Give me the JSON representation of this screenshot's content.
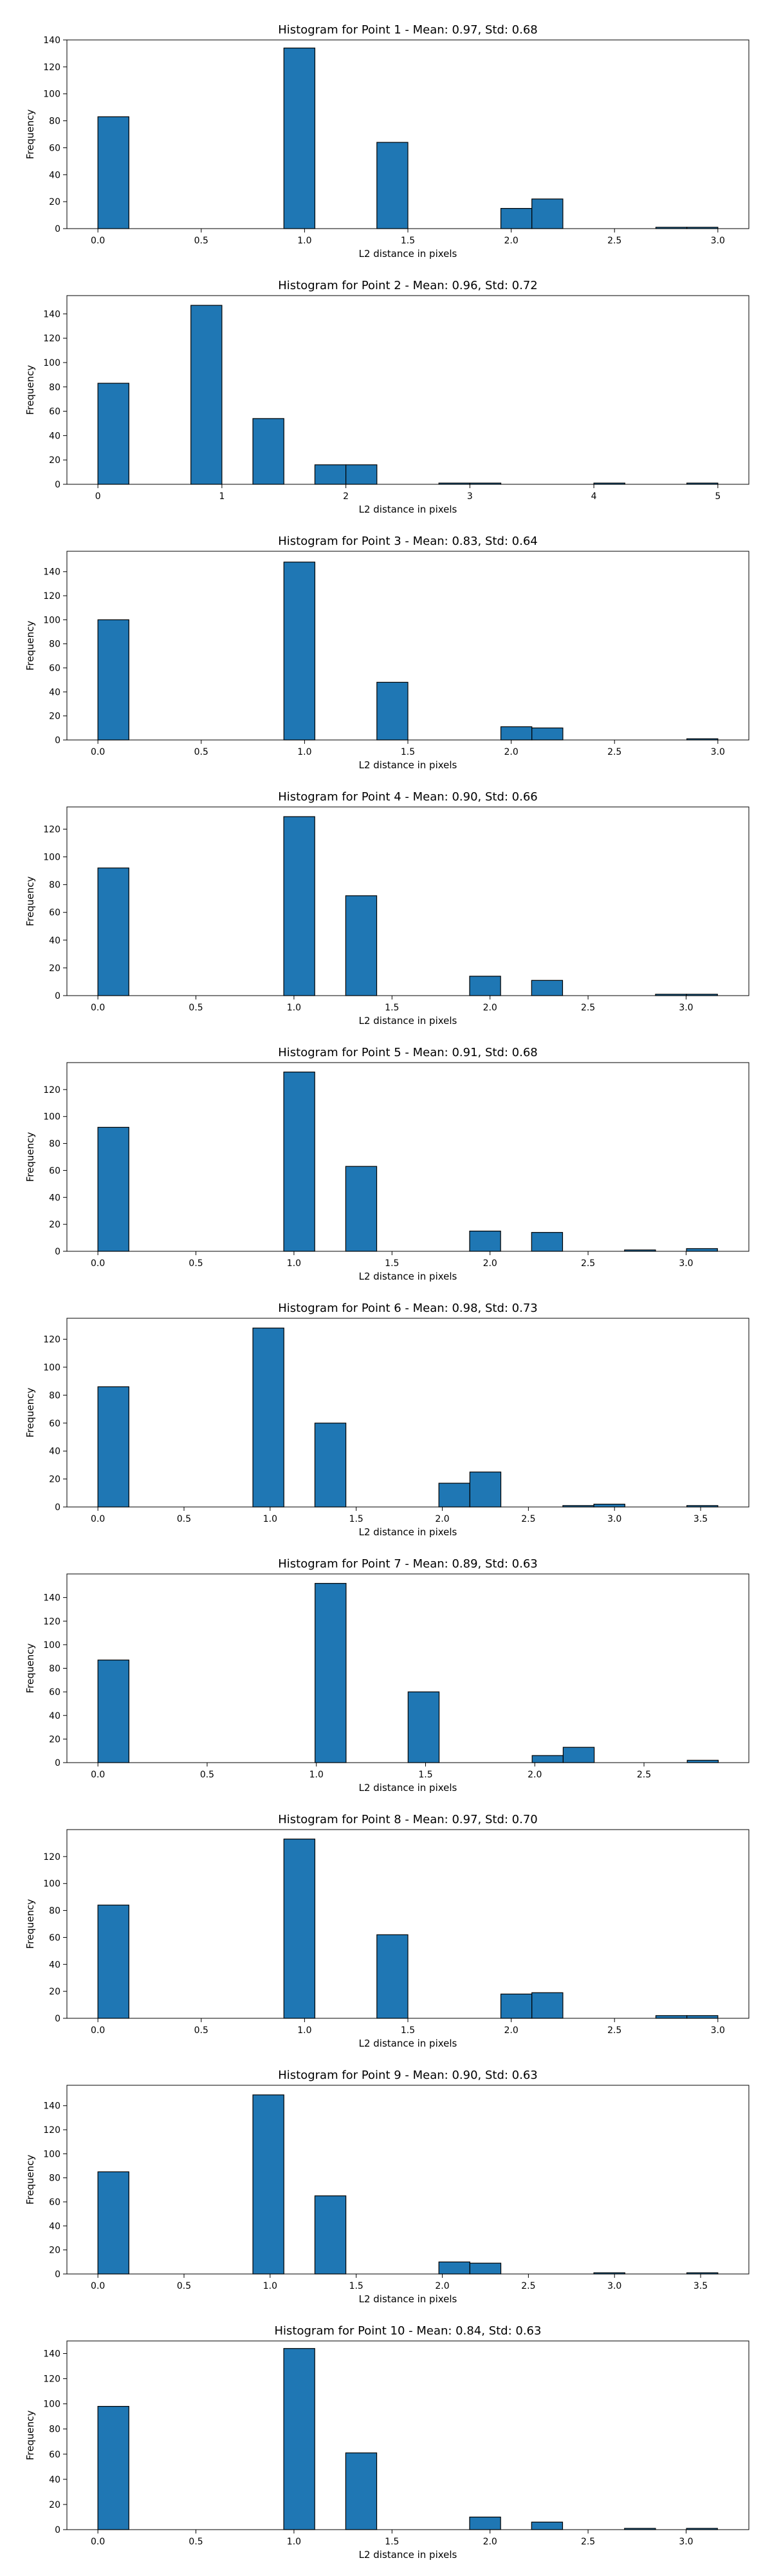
{
  "style": {
    "bar_color": "#1f77b4",
    "edge_color": "#000000"
  },
  "chart_data": [
    {
      "type": "bar",
      "title": "Histogram for Point 1 - Mean: 0.97, Std: 0.68",
      "xlabel": "L2 distance in pixels",
      "ylabel": "Frequency",
      "xlim": [
        -0.15,
        3.15
      ],
      "ylim": [
        0,
        140
      ],
      "xticks": [
        0.0,
        0.5,
        1.0,
        1.5,
        2.0,
        2.5,
        3.0
      ],
      "xtick_labels": [
        "0.0",
        "0.5",
        "1.0",
        "1.5",
        "2.0",
        "2.5",
        "3.0"
      ],
      "yticks": [
        0,
        20,
        40,
        60,
        80,
        100,
        120,
        140
      ],
      "bin_edges": [
        0,
        0.15,
        0.3,
        0.45,
        0.6,
        0.75,
        0.9,
        1.05,
        1.2,
        1.35,
        1.5,
        1.65,
        1.8,
        1.95,
        2.1,
        2.25,
        2.4,
        2.55,
        2.7,
        2.85,
        3.0
      ],
      "counts": [
        83,
        0,
        0,
        0,
        0,
        0,
        134,
        0,
        0,
        64,
        0,
        0,
        0,
        15,
        22,
        0,
        0,
        0,
        1,
        1
      ]
    },
    {
      "type": "bar",
      "title": "Histogram for Point 2 - Mean: 0.96, Std: 0.72",
      "xlabel": "L2 distance in pixels",
      "ylabel": "Frequency",
      "xlim": [
        -0.25,
        5.25
      ],
      "ylim": [
        0,
        155
      ],
      "xticks": [
        0,
        1,
        2,
        3,
        4,
        5
      ],
      "xtick_labels": [
        "0",
        "1",
        "2",
        "3",
        "4",
        "5"
      ],
      "yticks": [
        0,
        20,
        40,
        60,
        80,
        100,
        120,
        140
      ],
      "bin_edges": [
        0,
        0.25,
        0.5,
        0.75,
        1.0,
        1.25,
        1.5,
        1.75,
        2.0,
        2.25,
        2.5,
        2.75,
        3.0,
        3.25,
        3.5,
        3.75,
        4.0,
        4.25,
        4.5,
        4.75,
        5.0
      ],
      "counts": [
        83,
        0,
        0,
        147,
        0,
        54,
        0,
        16,
        16,
        0,
        0,
        1,
        1,
        0,
        0,
        0,
        1,
        0,
        0,
        1
      ]
    },
    {
      "type": "bar",
      "title": "Histogram for Point 3 - Mean: 0.83, Std: 0.64",
      "xlabel": "L2 distance in pixels",
      "ylabel": "Frequency",
      "xlim": [
        -0.15,
        3.15
      ],
      "ylim": [
        0,
        157
      ],
      "xticks": [
        0.0,
        0.5,
        1.0,
        1.5,
        2.0,
        2.5,
        3.0
      ],
      "xtick_labels": [
        "0.0",
        "0.5",
        "1.0",
        "1.5",
        "2.0",
        "2.5",
        "3.0"
      ],
      "yticks": [
        0,
        20,
        40,
        60,
        80,
        100,
        120,
        140
      ],
      "bin_edges": [
        0,
        0.15,
        0.3,
        0.45,
        0.6,
        0.75,
        0.9,
        1.05,
        1.2,
        1.35,
        1.5,
        1.65,
        1.8,
        1.95,
        2.1,
        2.25,
        2.4,
        2.55,
        2.7,
        2.85,
        3.0
      ],
      "counts": [
        100,
        0,
        0,
        0,
        0,
        0,
        148,
        0,
        0,
        48,
        0,
        0,
        0,
        11,
        10,
        0,
        0,
        0,
        0,
        1
      ]
    },
    {
      "type": "bar",
      "title": "Histogram for Point 4 - Mean: 0.90, Std: 0.66",
      "xlabel": "L2 distance in pixels",
      "ylabel": "Frequency",
      "xlim": [
        -0.158,
        3.32
      ],
      "ylim": [
        0,
        136
      ],
      "xticks": [
        0.0,
        0.5,
        1.0,
        1.5,
        2.0,
        2.5,
        3.0
      ],
      "xtick_labels": [
        "0.0",
        "0.5",
        "1.0",
        "1.5",
        "2.0",
        "2.5",
        "3.0"
      ],
      "yticks": [
        0,
        20,
        40,
        60,
        80,
        100,
        120
      ],
      "bin_edges": [
        0,
        0.158,
        0.316,
        0.474,
        0.632,
        0.79,
        0.948,
        1.106,
        1.264,
        1.422,
        1.58,
        1.738,
        1.896,
        2.054,
        2.212,
        2.37,
        2.528,
        2.686,
        2.844,
        3.002,
        3.16
      ],
      "counts": [
        92,
        0,
        0,
        0,
        0,
        0,
        129,
        0,
        72,
        0,
        0,
        0,
        14,
        0,
        11,
        0,
        0,
        0,
        1,
        1
      ]
    },
    {
      "type": "bar",
      "title": "Histogram for Point 5 - Mean: 0.91, Std: 0.68",
      "xlabel": "L2 distance in pixels",
      "ylabel": "Frequency",
      "xlim": [
        -0.158,
        3.32
      ],
      "ylim": [
        0,
        140
      ],
      "xticks": [
        0.0,
        0.5,
        1.0,
        1.5,
        2.0,
        2.5,
        3.0
      ],
      "xtick_labels": [
        "0.0",
        "0.5",
        "1.0",
        "1.5",
        "2.0",
        "2.5",
        "3.0"
      ],
      "yticks": [
        0,
        20,
        40,
        60,
        80,
        100,
        120
      ],
      "bin_edges": [
        0,
        0.158,
        0.316,
        0.474,
        0.632,
        0.79,
        0.948,
        1.106,
        1.264,
        1.422,
        1.58,
        1.738,
        1.896,
        2.054,
        2.212,
        2.37,
        2.528,
        2.686,
        2.844,
        3.002,
        3.16
      ],
      "counts": [
        92,
        0,
        0,
        0,
        0,
        0,
        133,
        0,
        63,
        0,
        0,
        0,
        15,
        0,
        14,
        0,
        0,
        1,
        0,
        2
      ]
    },
    {
      "type": "bar",
      "title": "Histogram for Point 6 - Mean: 0.98, Std: 0.73",
      "xlabel": "L2 distance in pixels",
      "ylabel": "Frequency",
      "xlim": [
        -0.18,
        3.78
      ],
      "ylim": [
        0,
        135
      ],
      "xticks": [
        0.0,
        0.5,
        1.0,
        1.5,
        2.0,
        2.5,
        3.0,
        3.5
      ],
      "xtick_labels": [
        "0.0",
        "0.5",
        "1.0",
        "1.5",
        "2.0",
        "2.5",
        "3.0",
        "3.5"
      ],
      "yticks": [
        0,
        20,
        40,
        60,
        80,
        100,
        120
      ],
      "bin_edges": [
        0,
        0.18,
        0.36,
        0.54,
        0.72,
        0.9,
        1.08,
        1.26,
        1.44,
        1.62,
        1.8,
        1.98,
        2.16,
        2.34,
        2.52,
        2.7,
        2.88,
        3.06,
        3.24,
        3.42,
        3.6
      ],
      "counts": [
        86,
        0,
        0,
        0,
        0,
        128,
        0,
        60,
        0,
        0,
        0,
        17,
        25,
        0,
        0,
        1,
        2,
        0,
        0,
        1
      ]
    },
    {
      "type": "bar",
      "title": "Histogram for Point 7 - Mean: 0.89, Std: 0.63",
      "xlabel": "L2 distance in pixels",
      "ylabel": "Frequency",
      "xlim": [
        -0.142,
        2.98
      ],
      "ylim": [
        0,
        160
      ],
      "xticks": [
        0.0,
        0.5,
        1.0,
        1.5,
        2.0,
        2.5
      ],
      "xtick_labels": [
        "0.0",
        "0.5",
        "1.0",
        "1.5",
        "2.0",
        "2.5"
      ],
      "yticks": [
        0,
        20,
        40,
        60,
        80,
        100,
        120,
        140
      ],
      "bin_edges": [
        0,
        0.142,
        0.284,
        0.426,
        0.568,
        0.71,
        0.852,
        0.994,
        1.136,
        1.278,
        1.42,
        1.562,
        1.704,
        1.846,
        1.988,
        2.13,
        2.272,
        2.414,
        2.556,
        2.698,
        2.84
      ],
      "counts": [
        87,
        0,
        0,
        0,
        0,
        0,
        0,
        152,
        0,
        0,
        60,
        0,
        0,
        0,
        6,
        13,
        0,
        0,
        0,
        2
      ]
    },
    {
      "type": "bar",
      "title": "Histogram for Point 8 - Mean: 0.97, Std: 0.70",
      "xlabel": "L2 distance in pixels",
      "ylabel": "Frequency",
      "xlim": [
        -0.15,
        3.15
      ],
      "ylim": [
        0,
        140
      ],
      "xticks": [
        0.0,
        0.5,
        1.0,
        1.5,
        2.0,
        2.5,
        3.0
      ],
      "xtick_labels": [
        "0.0",
        "0.5",
        "1.0",
        "1.5",
        "2.0",
        "2.5",
        "3.0"
      ],
      "yticks": [
        0,
        20,
        40,
        60,
        80,
        100,
        120
      ],
      "bin_edges": [
        0,
        0.15,
        0.3,
        0.45,
        0.6,
        0.75,
        0.9,
        1.05,
        1.2,
        1.35,
        1.5,
        1.65,
        1.8,
        1.95,
        2.1,
        2.25,
        2.4,
        2.55,
        2.7,
        2.85,
        3.0
      ],
      "counts": [
        84,
        0,
        0,
        0,
        0,
        0,
        133,
        0,
        0,
        62,
        0,
        0,
        0,
        18,
        19,
        0,
        0,
        0,
        2,
        2
      ]
    },
    {
      "type": "bar",
      "title": "Histogram for Point 9 - Mean: 0.90, Std: 0.63",
      "xlabel": "L2 distance in pixels",
      "ylabel": "Frequency",
      "xlim": [
        -0.18,
        3.78
      ],
      "ylim": [
        0,
        157
      ],
      "xticks": [
        0.0,
        0.5,
        1.0,
        1.5,
        2.0,
        2.5,
        3.0,
        3.5
      ],
      "xtick_labels": [
        "0.0",
        "0.5",
        "1.0",
        "1.5",
        "2.0",
        "2.5",
        "3.0",
        "3.5"
      ],
      "yticks": [
        0,
        20,
        40,
        60,
        80,
        100,
        120,
        140
      ],
      "bin_edges": [
        0,
        0.18,
        0.36,
        0.54,
        0.72,
        0.9,
        1.08,
        1.26,
        1.44,
        1.62,
        1.8,
        1.98,
        2.16,
        2.34,
        2.52,
        2.7,
        2.88,
        3.06,
        3.24,
        3.42,
        3.6
      ],
      "counts": [
        85,
        0,
        0,
        0,
        0,
        149,
        0,
        65,
        0,
        0,
        0,
        10,
        9,
        0,
        0,
        0,
        1,
        0,
        0,
        1
      ]
    },
    {
      "type": "bar",
      "title": "Histogram for Point 10 - Mean: 0.84, Std: 0.63",
      "xlabel": "L2 distance in pixels",
      "ylabel": "Frequency",
      "xlim": [
        -0.158,
        3.32
      ],
      "ylim": [
        0,
        150
      ],
      "xticks": [
        0.0,
        0.5,
        1.0,
        1.5,
        2.0,
        2.5,
        3.0
      ],
      "xtick_labels": [
        "0.0",
        "0.5",
        "1.0",
        "1.5",
        "2.0",
        "2.5",
        "3.0"
      ],
      "yticks": [
        0,
        20,
        40,
        60,
        80,
        100,
        120,
        140
      ],
      "bin_edges": [
        0,
        0.158,
        0.316,
        0.474,
        0.632,
        0.79,
        0.948,
        1.106,
        1.264,
        1.422,
        1.58,
        1.738,
        1.896,
        2.054,
        2.212,
        2.37,
        2.528,
        2.686,
        2.844,
        3.002,
        3.16
      ],
      "counts": [
        98,
        0,
        0,
        0,
        0,
        0,
        144,
        0,
        61,
        0,
        0,
        0,
        10,
        0,
        6,
        0,
        0,
        1,
        0,
        1
      ]
    }
  ]
}
